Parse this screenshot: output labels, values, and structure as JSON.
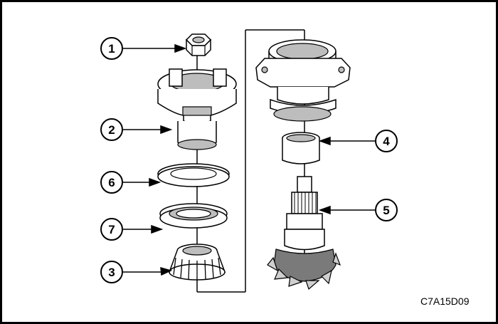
{
  "figure": {
    "code": "C7A15D09"
  },
  "callouts": [
    {
      "id": "callout-1",
      "label": "1"
    },
    {
      "id": "callout-2",
      "label": "2"
    },
    {
      "id": "callout-6",
      "label": "6"
    },
    {
      "id": "callout-7",
      "label": "7"
    },
    {
      "id": "callout-3",
      "label": "3"
    },
    {
      "id": "callout-4",
      "label": "4"
    },
    {
      "id": "callout-5",
      "label": "5"
    }
  ]
}
